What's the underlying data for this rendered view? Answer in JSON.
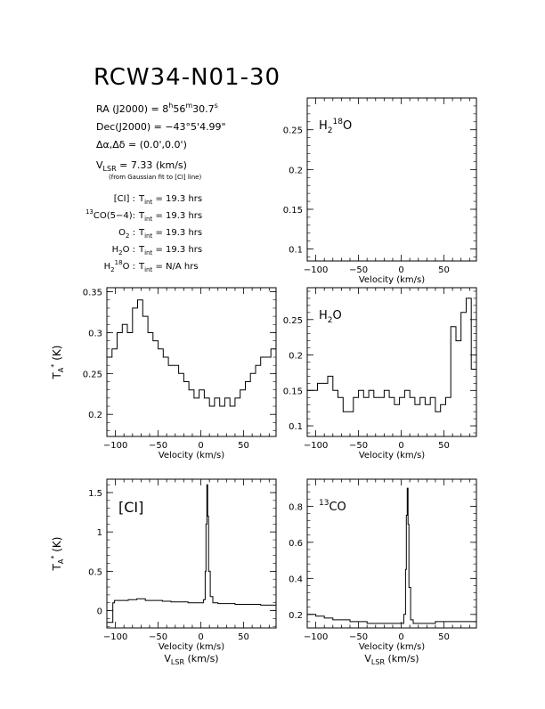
{
  "source": {
    "name": "RCW34-N01-30",
    "ra_label": "RA (J2000)",
    "ra_h": "8",
    "ra_m": "56",
    "ra_s": "30.7",
    "dec_label": "Dec(J2000)",
    "dec_value": "−43°5'4.99\"",
    "offset_value": "(0.0',0.0')",
    "vlsr_value": "= 7.33 (km/s)",
    "vlsr_note": "(from Gaussian fit to [CI] line)"
  },
  "integrations": [
    {
      "label": "[CI] :",
      "value": "= 19.3 hrs"
    },
    {
      "label": "CO(5−4):",
      "value": "= 19.3 hrs"
    },
    {
      "label": ":",
      "value": "= 19.3 hrs"
    },
    {
      "label": ":",
      "value": "= 19.3 hrs"
    },
    {
      "label": ":",
      "value": "= N/A hrs"
    }
  ],
  "axis_labels": {
    "x": "Velocity (km/s)",
    "vlsr": "(km/s)",
    "ta": "(K)"
  },
  "chart_data": [
    {
      "type": "line",
      "title": "H2 18O",
      "xlim": [
        -110,
        88
      ],
      "ylim": [
        0.085,
        0.29
      ],
      "xticks": [
        -100,
        -50,
        0,
        50
      ],
      "yticks": [
        0.1,
        0.15,
        0.2,
        0.25
      ],
      "series": []
    },
    {
      "type": "line",
      "title": "",
      "xlim": [
        -110,
        88
      ],
      "ylim": [
        0.173,
        0.355
      ],
      "xticks": [
        -100,
        -50,
        0,
        50
      ],
      "yticks": [
        0.2,
        0.25,
        0.3,
        0.35
      ],
      "series": [
        {
          "x_start": -110,
          "x_step": 6,
          "values": [
            0.27,
            0.28,
            0.3,
            0.31,
            0.3,
            0.33,
            0.34,
            0.32,
            0.3,
            0.29,
            0.28,
            0.27,
            0.26,
            0.26,
            0.25,
            0.24,
            0.23,
            0.22,
            0.23,
            0.22,
            0.21,
            0.22,
            0.21,
            0.22,
            0.21,
            0.22,
            0.23,
            0.24,
            0.25,
            0.26,
            0.27,
            0.27,
            0.28,
            0.28
          ]
        }
      ]
    },
    {
      "type": "line",
      "title": "H2O",
      "xlim": [
        -110,
        88
      ],
      "ylim": [
        0.085,
        0.295
      ],
      "xticks": [
        -100,
        -50,
        0,
        50
      ],
      "yticks": [
        0.1,
        0.15,
        0.2,
        0.25
      ],
      "series": [
        {
          "x_start": -110,
          "x_step": 6,
          "values": [
            0.15,
            0.15,
            0.16,
            0.16,
            0.17,
            0.15,
            0.14,
            0.12,
            0.12,
            0.14,
            0.15,
            0.14,
            0.15,
            0.14,
            0.14,
            0.15,
            0.14,
            0.13,
            0.14,
            0.15,
            0.14,
            0.13,
            0.14,
            0.13,
            0.14,
            0.12,
            0.13,
            0.14,
            0.24,
            0.22,
            0.26,
            0.28,
            0.18,
            0.12
          ]
        }
      ]
    },
    {
      "type": "line",
      "title": "[CI]",
      "xlim": [
        -110,
        88
      ],
      "ylim": [
        -0.22,
        1.67
      ],
      "xticks": [
        -100,
        -50,
        0,
        50
      ],
      "yticks": [
        0,
        0.5,
        1,
        1.5
      ],
      "series": [
        {
          "x": [
            -110,
            -104,
            -103,
            -101,
            -95,
            -85,
            -75,
            -65,
            -55,
            -45,
            -35,
            -25,
            -15,
            -5,
            0,
            3,
            5,
            6,
            7,
            8,
            9,
            11,
            14,
            20,
            30,
            40,
            50,
            60,
            70,
            80,
            88
          ],
          "y": [
            -0.15,
            -0.15,
            0.1,
            0.13,
            0.13,
            0.14,
            0.15,
            0.13,
            0.13,
            0.12,
            0.11,
            0.11,
            0.1,
            0.1,
            0.1,
            0.14,
            0.5,
            1.1,
            1.6,
            1.2,
            0.5,
            0.18,
            0.1,
            0.09,
            0.09,
            0.08,
            0.08,
            0.08,
            0.07,
            0.07,
            0.07
          ]
        }
      ]
    },
    {
      "type": "line",
      "title": "CO",
      "xlim": [
        -110,
        88
      ],
      "ylim": [
        0.125,
        0.95
      ],
      "xticks": [
        -100,
        -50,
        0,
        50
      ],
      "yticks": [
        0.2,
        0.4,
        0.6,
        0.8
      ],
      "series": [
        {
          "x": [
            -110,
            -100,
            -90,
            -80,
            -70,
            -60,
            -50,
            -40,
            -30,
            -20,
            -10,
            0,
            3,
            5,
            6,
            7,
            8,
            9,
            11,
            14,
            20,
            30,
            40,
            50,
            60,
            70,
            80,
            88
          ],
          "y": [
            0.2,
            0.19,
            0.18,
            0.17,
            0.17,
            0.16,
            0.16,
            0.15,
            0.15,
            0.15,
            0.15,
            0.15,
            0.2,
            0.45,
            0.75,
            0.9,
            0.7,
            0.35,
            0.17,
            0.15,
            0.15,
            0.15,
            0.16,
            0.16,
            0.16,
            0.16,
            0.16,
            0.16
          ]
        }
      ]
    }
  ]
}
